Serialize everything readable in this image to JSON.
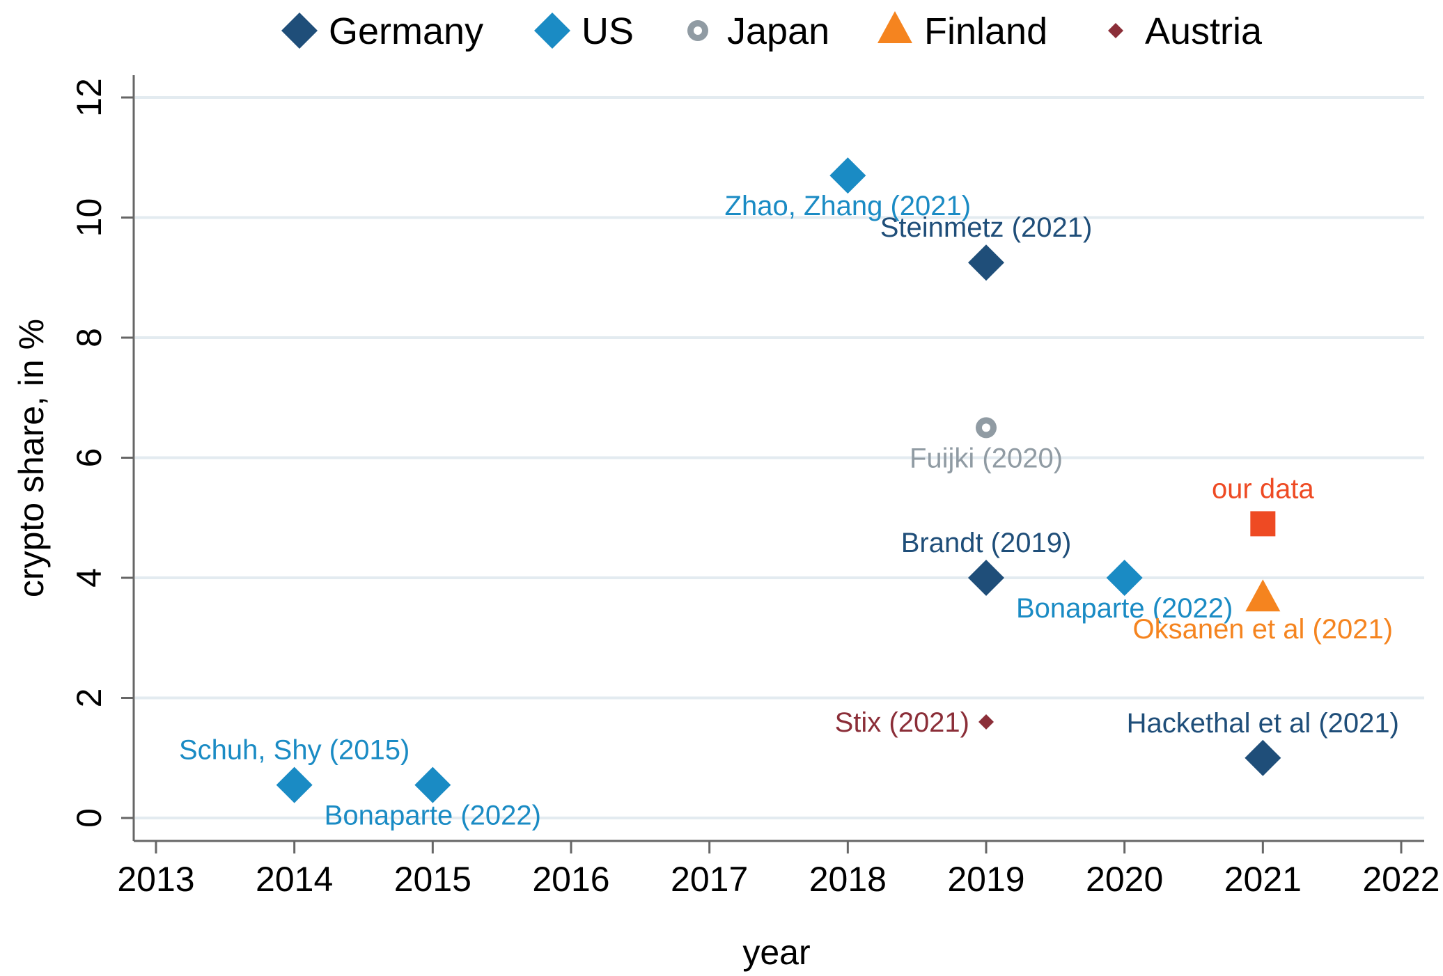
{
  "chart_data": {
    "type": "scatter",
    "xlabel": "year",
    "ylabel": "crypto share, in %",
    "xlim": [
      2013,
      2022
    ],
    "ylim": [
      0,
      12
    ],
    "xticks": [
      "2013",
      "2014",
      "2015",
      "2016",
      "2017",
      "2018",
      "2019",
      "2020",
      "2021",
      "2022"
    ],
    "yticks": [
      "0",
      "2",
      "4",
      "6",
      "8",
      "10",
      "12"
    ],
    "grid": "horizontal",
    "legend_position": "top",
    "legend": [
      {
        "name": "Germany",
        "marker": "diamond",
        "color": "#1f4e79"
      },
      {
        "name": "US",
        "marker": "diamond",
        "color": "#1a8bc4"
      },
      {
        "name": "Japan",
        "marker": "hollow-circle",
        "color": "#909ba3"
      },
      {
        "name": "Finland",
        "marker": "triangle",
        "color": "#f5841f"
      },
      {
        "name": "Austria",
        "marker": "small-diamond",
        "color": "#8b2e38"
      }
    ],
    "points": [
      {
        "x": 2014,
        "y": 0.55,
        "label": "Schuh, Shy (2015)",
        "marker": "diamond",
        "color": "#1a8bc4",
        "labelColor": "#1a8bc4",
        "labelPos": "above"
      },
      {
        "x": 2015,
        "y": 0.55,
        "label": "Bonaparte (2022)",
        "marker": "diamond",
        "color": "#1a8bc4",
        "labelColor": "#1a8bc4",
        "labelPos": "below"
      },
      {
        "x": 2018,
        "y": 10.7,
        "label": "Zhao, Zhang (2021)",
        "marker": "diamond",
        "color": "#1a8bc4",
        "labelColor": "#1a8bc4",
        "labelPos": "below"
      },
      {
        "x": 2019,
        "y": 9.25,
        "label": "Steinmetz (2021)",
        "marker": "diamond",
        "color": "#1f4e79",
        "labelColor": "#1f4e79",
        "labelPos": "above"
      },
      {
        "x": 2019,
        "y": 6.5,
        "label": "Fuijki (2020)",
        "marker": "hollow-circle",
        "color": "#909ba3",
        "labelColor": "#909ba3",
        "labelPos": "below"
      },
      {
        "x": 2019,
        "y": 4.0,
        "label": "Brandt (2019)",
        "marker": "diamond",
        "color": "#1f4e79",
        "labelColor": "#1f4e79",
        "labelPos": "above"
      },
      {
        "x": 2019,
        "y": 1.6,
        "label": "Stix (2021)",
        "marker": "small-diamond",
        "color": "#8b2e38",
        "labelColor": "#8b2e38",
        "labelPos": "left"
      },
      {
        "x": 2020,
        "y": 4.0,
        "label": "Bonaparte (2022)",
        "marker": "diamond",
        "color": "#1a8bc4",
        "labelColor": "#1a8bc4",
        "labelPos": "below"
      },
      {
        "x": 2021,
        "y": 4.9,
        "label": "our data",
        "marker": "square",
        "color": "#ee4a23",
        "labelColor": "#ee4a23",
        "labelPos": "above"
      },
      {
        "x": 2021,
        "y": 3.65,
        "label": "Oksanen et al (2021)",
        "marker": "triangle",
        "color": "#f5841f",
        "labelColor": "#f5841f",
        "labelPos": "below"
      },
      {
        "x": 2021,
        "y": 1.0,
        "label": "Hackethal et al (2021)",
        "marker": "diamond",
        "color": "#1f4e79",
        "labelColor": "#1f4e79",
        "labelPos": "above"
      }
    ]
  }
}
